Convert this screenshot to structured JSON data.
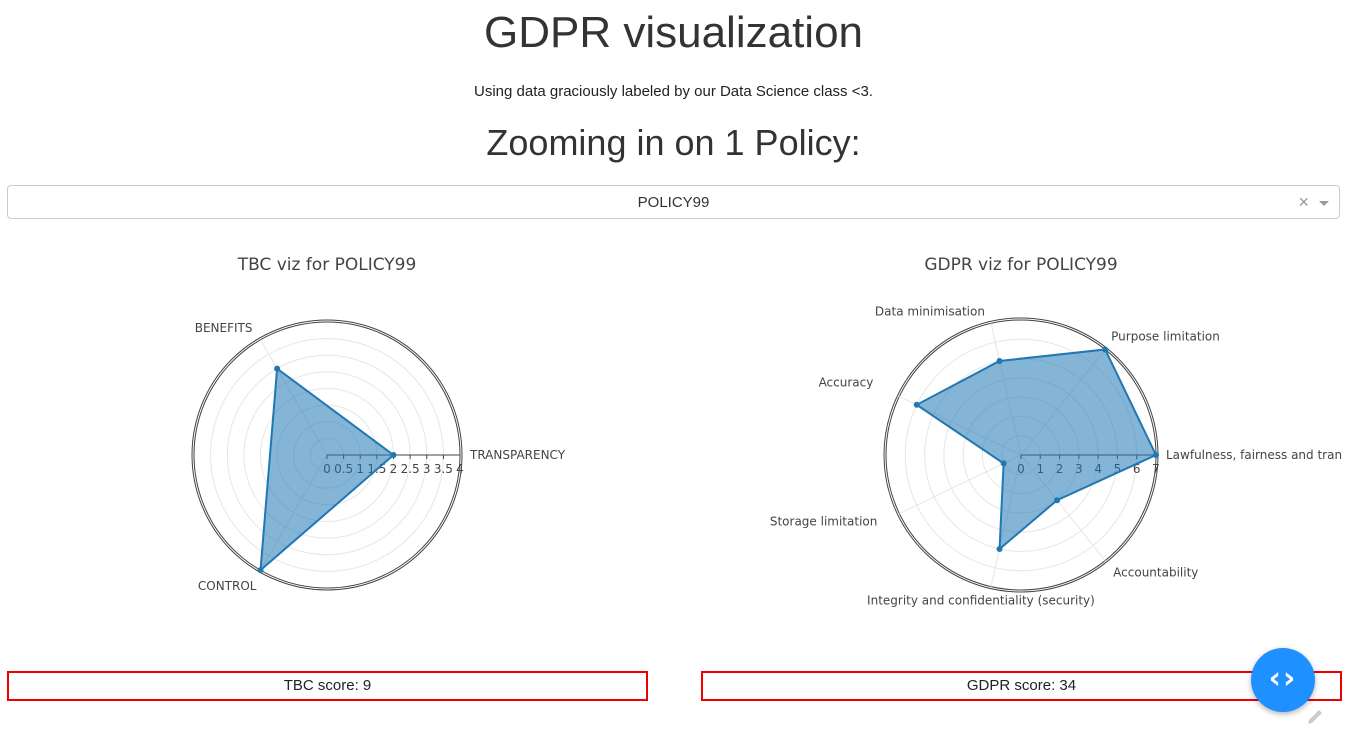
{
  "header": {
    "title": "GDPR visualization",
    "subtitle": "Using data graciously labeled by our Data Science class <3.",
    "section_title": "Zooming in on 1 Policy:"
  },
  "dropdown": {
    "selected": "POLICY99",
    "clear_symbol": "×"
  },
  "chart_data": [
    {
      "type": "radar",
      "title": "TBC viz for POLICY99",
      "categories": [
        "TRANSPARENCY",
        "BENEFITS",
        "CONTROL"
      ],
      "values": [
        2,
        3,
        4
      ],
      "rrange": [
        0,
        4
      ],
      "ticks": [
        "0",
        "0.5",
        "1",
        "1.5",
        "2",
        "2.5",
        "3",
        "3.5",
        "4"
      ],
      "color": "#1f77b4"
    },
    {
      "type": "radar",
      "title": "GDPR viz for POLICY99",
      "categories": [
        "Lawfulness, fairness and tran",
        "Purpose limitation",
        "Data minimisation",
        "Accuracy",
        "Storage limitation",
        "Integrity and confidentiality (security)",
        "Accountability"
      ],
      "values": [
        7,
        7,
        5,
        6,
        1,
        5,
        3
      ],
      "rrange": [
        0,
        7
      ],
      "ticks": [
        "0",
        "1",
        "2",
        "3",
        "4",
        "5",
        "6",
        "7"
      ],
      "color": "#1f77b4"
    }
  ],
  "scores": {
    "tbc": "TBC score: 9",
    "gdpr": "GDPR score: 34"
  },
  "fab": {
    "icon": "code-brackets-icon",
    "color": "#1e90ff"
  }
}
